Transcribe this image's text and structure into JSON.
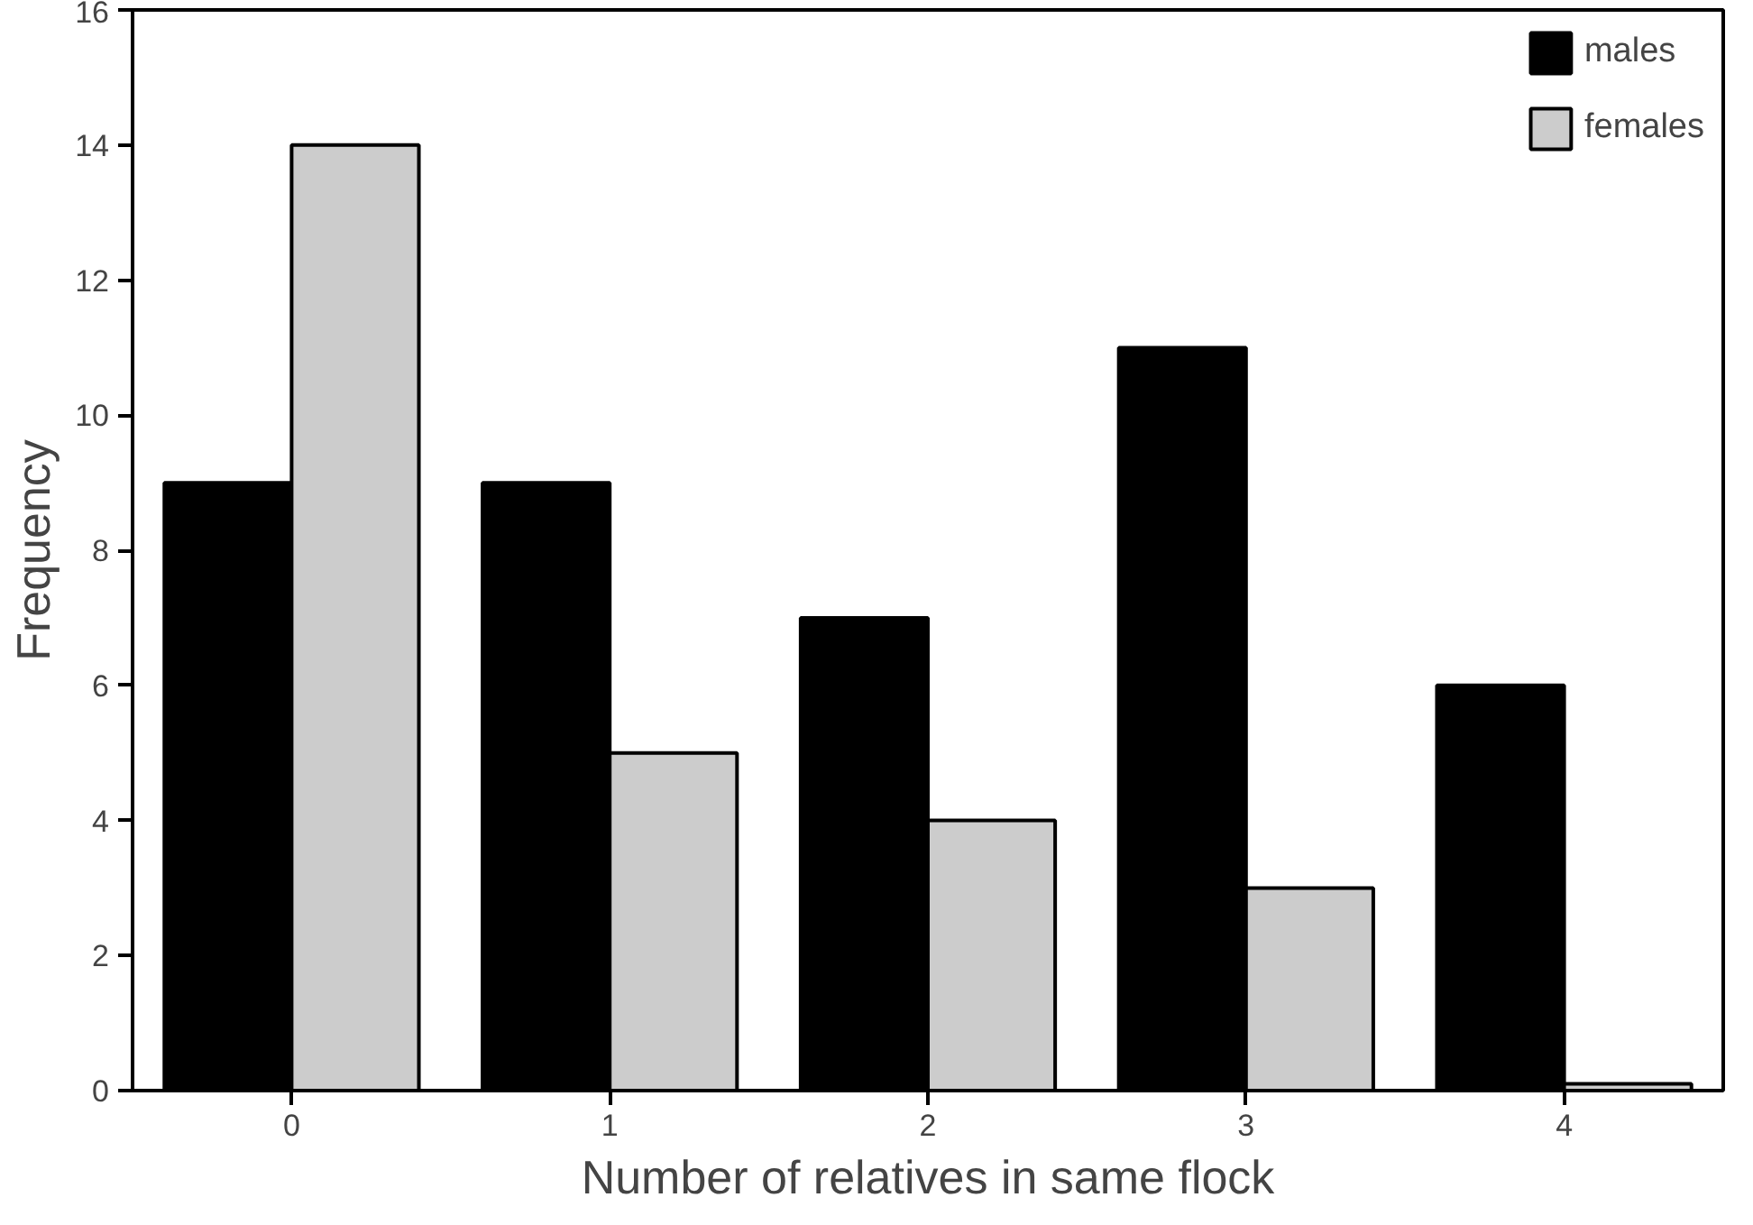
{
  "chart_data": {
    "type": "bar",
    "xlabel": "Number of relatives in same flock",
    "ylabel": "Frequency",
    "categories": [
      "0",
      "1",
      "2",
      "3",
      "4"
    ],
    "series": [
      {
        "name": "males",
        "color": "#000000",
        "values": [
          9,
          9,
          7,
          11,
          6
        ]
      },
      {
        "name": "females",
        "color": "#cccccc",
        "values": [
          14,
          5,
          4,
          3,
          0.1
        ]
      }
    ],
    "ylim": [
      0,
      16
    ],
    "yticks": [
      0,
      2,
      4,
      6,
      8,
      10,
      12,
      14,
      16
    ],
    "grid": false,
    "legend": "top right"
  }
}
